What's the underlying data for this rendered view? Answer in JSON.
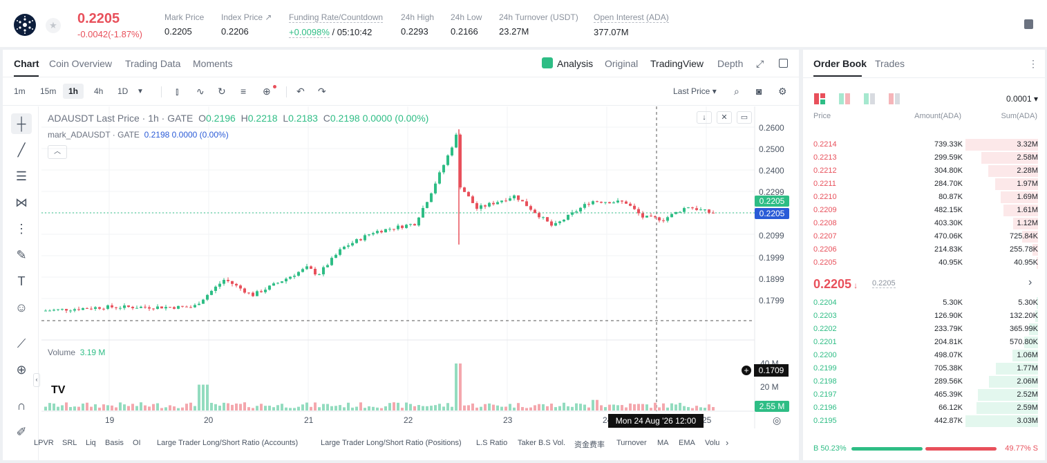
{
  "header": {
    "last_price": "0.2205",
    "change": "-0.0042(-1.87%)",
    "stats": [
      {
        "label": "Mark Price",
        "value": "0.2205"
      },
      {
        "label": "Index Price ↗",
        "value": "0.2206"
      },
      {
        "label": "Funding Rate/Countdown",
        "value_green": "+0.0098%",
        "value": " / 05:10:42"
      },
      {
        "label": "24h High",
        "value": "0.2293"
      },
      {
        "label": "24h Low",
        "value": "0.2166"
      },
      {
        "label": "24h Turnover (USDT)",
        "value": "23.27M"
      },
      {
        "label": "Open Interest (ADA)",
        "value": "377.07M"
      }
    ]
  },
  "chart_tabs": {
    "left": [
      "Chart",
      "Coin Overview",
      "Trading Data",
      "Moments"
    ],
    "right": [
      "Analysis",
      "Original",
      "TradingView",
      "Depth"
    ]
  },
  "toolbar": {
    "timeframes": [
      "1m",
      "15m",
      "1h",
      "4h",
      "1D"
    ],
    "active_timeframe": "1h",
    "price_type": "Last Price ▾"
  },
  "chart_info": {
    "title": "ADAUSDT Last Price · 1h · GATE",
    "o_label": "O",
    "o": "0.2196",
    "h_label": "H",
    "h": "0.2218",
    "l_label": "L",
    "l": "0.2183",
    "c_label": "C",
    "c": "0.2198 0.0000 (0.00%)",
    "mark_label": "mark_ADAUSDT · GATE",
    "mark_value": "0.2198 0.0000 (0.00%)",
    "volume_label": "Volume",
    "volume_value": "3.19 M",
    "price_ticks": [
      "0.2600",
      "0.2500",
      "0.2400",
      "0.2299",
      "0.2099",
      "0.1999",
      "0.1899",
      "0.1799"
    ],
    "volume_ticks": [
      "40 M",
      "20 M"
    ],
    "tag_last_green": "0.2205",
    "tag_last_blue": "0.2205",
    "tag_cross": "0.1709",
    "tag_volume": "2.55 M",
    "date_ticks": [
      "19",
      "20",
      "21",
      "22",
      "23",
      "24",
      "25"
    ],
    "cross_date": "Mon 24 Aug '26   12:00"
  },
  "indicators": [
    "LPVR",
    "SRL",
    "Liq",
    "Basis",
    "OI",
    "Large Trader Long/Short Ratio (Accounts)",
    "Large Trader Long/Short Ratio (Positions)",
    "L.S Ratio",
    "Taker B.S Vol.",
    "资金费率",
    "Turnover",
    "MA",
    "EMA",
    "Volu"
  ],
  "order_book": {
    "tabs": [
      "Order Book",
      "Trades"
    ],
    "precision": "0.0001 ▾",
    "headers": {
      "price": "Price",
      "amount": "Amount(ADA)",
      "sum": "Sum(ADA)"
    },
    "asks": [
      {
        "price": "0.2214",
        "amount": "739.33K",
        "sum": "3.32M",
        "depth": 1.0
      },
      {
        "price": "0.2213",
        "amount": "299.59K",
        "sum": "2.58M",
        "depth": 0.78
      },
      {
        "price": "0.2212",
        "amount": "304.80K",
        "sum": "2.28M",
        "depth": 0.69
      },
      {
        "price": "0.2211",
        "amount": "284.70K",
        "sum": "1.97M",
        "depth": 0.59
      },
      {
        "price": "0.2210",
        "amount": "80.87K",
        "sum": "1.69M",
        "depth": 0.51
      },
      {
        "price": "0.2209",
        "amount": "482.15K",
        "sum": "1.61M",
        "depth": 0.48
      },
      {
        "price": "0.2208",
        "amount": "403.30K",
        "sum": "1.12M",
        "depth": 0.34
      },
      {
        "price": "0.2207",
        "amount": "470.06K",
        "sum": "725.84K",
        "depth": 0.22
      },
      {
        "price": "0.2206",
        "amount": "214.83K",
        "sum": "255.78K",
        "depth": 0.08
      },
      {
        "price": "0.2205",
        "amount": "40.95K",
        "sum": "40.95K",
        "depth": 0.01
      }
    ],
    "mid_price": "0.2205",
    "mid_arrow": "🡣",
    "mid_mark": "0.2205",
    "bids": [
      {
        "price": "0.2204",
        "amount": "5.30K",
        "sum": "5.30K",
        "depth": 0.0
      },
      {
        "price": "0.2203",
        "amount": "126.90K",
        "sum": "132.20K",
        "depth": 0.04
      },
      {
        "price": "0.2202",
        "amount": "233.79K",
        "sum": "365.99K",
        "depth": 0.12
      },
      {
        "price": "0.2201",
        "amount": "204.81K",
        "sum": "570.80K",
        "depth": 0.19
      },
      {
        "price": "0.2200",
        "amount": "498.07K",
        "sum": "1.06M",
        "depth": 0.35
      },
      {
        "price": "0.2199",
        "amount": "705.38K",
        "sum": "1.77M",
        "depth": 0.58
      },
      {
        "price": "0.2198",
        "amount": "289.56K",
        "sum": "2.06M",
        "depth": 0.68
      },
      {
        "price": "0.2197",
        "amount": "465.39K",
        "sum": "2.52M",
        "depth": 0.83
      },
      {
        "price": "0.2196",
        "amount": "66.12K",
        "sum": "2.59M",
        "depth": 0.85
      },
      {
        "price": "0.2195",
        "amount": "442.87K",
        "sum": "3.03M",
        "depth": 1.0
      }
    ],
    "buy_ratio": "B 50.23%",
    "sell_ratio": "49.77% S",
    "buy_fraction": 0.5023
  },
  "colors": {
    "up": "#2ebd85",
    "down": "#e8505b",
    "accent": "#2a5bd7"
  }
}
